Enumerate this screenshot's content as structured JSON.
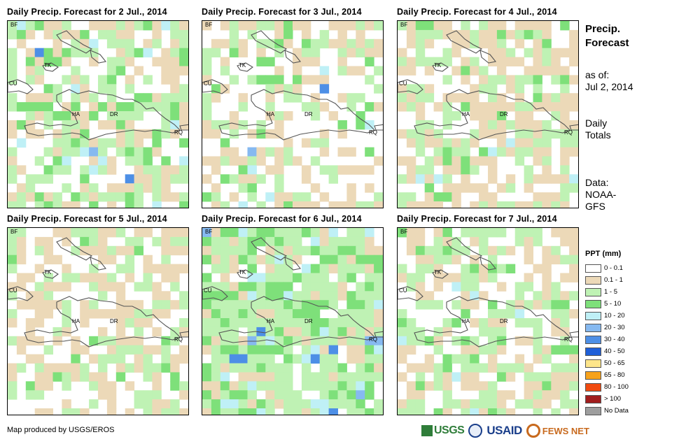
{
  "panels": [
    {
      "title": "Daily Precip. Forecast for 2 Jul., 2014",
      "variant": 0
    },
    {
      "title": "Daily Precip. Forecast for 3 Jul., 2014",
      "variant": 1
    },
    {
      "title": "Daily Precip. Forecast for 4 Jul., 2014",
      "variant": 2
    },
    {
      "title": "Daily Precip. Forecast for 5 Jul., 2014",
      "variant": 3
    },
    {
      "title": "Daily Precip. Forecast for 6 Jul., 2014",
      "variant": 4
    },
    {
      "title": "Daily Precip. Forecast for 7 Jul., 2014",
      "variant": 5
    }
  ],
  "map_labels": {
    "bf": "BF",
    "tk": "TK",
    "cu": "CU",
    "ha": "HA",
    "dr": "DR",
    "rq": "RQ"
  },
  "sidebar": {
    "title_line1": "Precip.",
    "title_line2": "Forecast",
    "asof_line1": "as of:",
    "asof_line2": "Jul 2, 2014",
    "totals_line1": "Daily",
    "totals_line2": "Totals",
    "data_line1": "Data:",
    "data_line2": "NOAA-",
    "data_line3": "GFS"
  },
  "legend": {
    "title": "PPT (mm)",
    "items": [
      {
        "label": "0 - 0.1",
        "color": "#ffffff"
      },
      {
        "label": "0.1 - 1",
        "color": "#ecd9b8"
      },
      {
        "label": "1 - 5",
        "color": "#bff2b4"
      },
      {
        "label": "5 - 10",
        "color": "#7ee07a"
      },
      {
        "label": "10 - 20",
        "color": "#bff0f6"
      },
      {
        "label": "20 - 30",
        "color": "#86b9f0"
      },
      {
        "label": "30 - 40",
        "color": "#4d8fe6"
      },
      {
        "label": "40 - 50",
        "color": "#1f5fd8"
      },
      {
        "label": "50 - 65",
        "color": "#fde58a"
      },
      {
        "label": "65 - 80",
        "color": "#f7a21b"
      },
      {
        "label": "80 - 100",
        "color": "#f14a10"
      },
      {
        "label": "> 100",
        "color": "#a11d1d"
      },
      {
        "label": "No Data",
        "color": "#9e9e9e"
      }
    ]
  },
  "credit": "Map produced by USGS/EROS",
  "logos": {
    "usgs": "USGS",
    "usaid": "USAID",
    "fewsnet": "FEWS NET"
  }
}
